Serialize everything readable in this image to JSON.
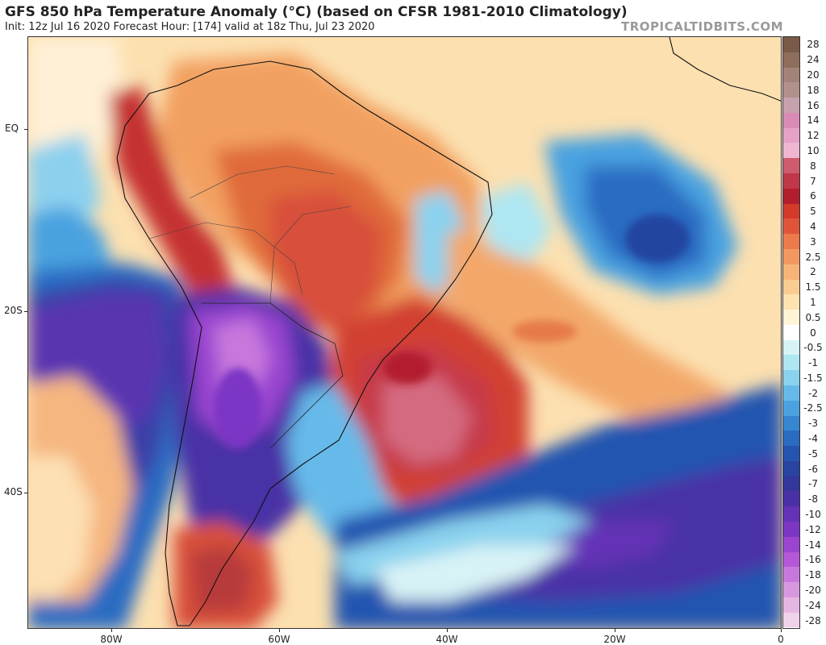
{
  "header": {
    "title": "GFS 850 hPa Temperature Anomaly (°C) (based on CFSR 1981-2010 Climatology)",
    "subtitle": "Init: 12z Jul 16 2020   Forecast Hour: [174]   valid at 18z Thu, Jul 23 2020",
    "brand": "TROPICALTIDBITS.COM"
  },
  "map": {
    "y_ticks": [
      "EQ",
      "20S",
      "40S"
    ],
    "x_ticks": [
      "80W",
      "60W",
      "40W",
      "20W",
      "0"
    ]
  },
  "colorbar": {
    "labels": [
      "28",
      "24",
      "20",
      "18",
      "16",
      "14",
      "12",
      "10",
      "8",
      "7",
      "6",
      "5",
      "4",
      "3",
      "2.5",
      "2",
      "1.5",
      "1",
      "0.5",
      "0",
      "-0.5",
      "-1",
      "-1.5",
      "-2",
      "-2.5",
      "-3",
      "-4",
      "-5",
      "-6",
      "-7",
      "-8",
      "-10",
      "-12",
      "-14",
      "-16",
      "-18",
      "-20",
      "-24",
      "-28"
    ],
    "colors": [
      "#7a5a48",
      "#8f6e5c",
      "#a3827a",
      "#b2918d",
      "#c7a1ad",
      "#d98bb5",
      "#e6a1c6",
      "#efb6d1",
      "#d05a6e",
      "#c03848",
      "#b21e2e",
      "#d43a2a",
      "#e0553a",
      "#ec7a4a",
      "#f29860",
      "#f7b478",
      "#fbcc92",
      "#fde3b0",
      "#fff4d6",
      "#ffffff",
      "#d8f3f6",
      "#aee6f2",
      "#8ad2ee",
      "#66baea",
      "#4aa2e0",
      "#3686d2",
      "#2a6cc2",
      "#2454b0",
      "#2844a0",
      "#33369a",
      "#4a30a6",
      "#6432b6",
      "#7c36c4",
      "#9a44d0",
      "#b458d8",
      "#c878dc",
      "#d898de",
      "#e6b6e2",
      "#f0d2ea"
    ]
  }
}
